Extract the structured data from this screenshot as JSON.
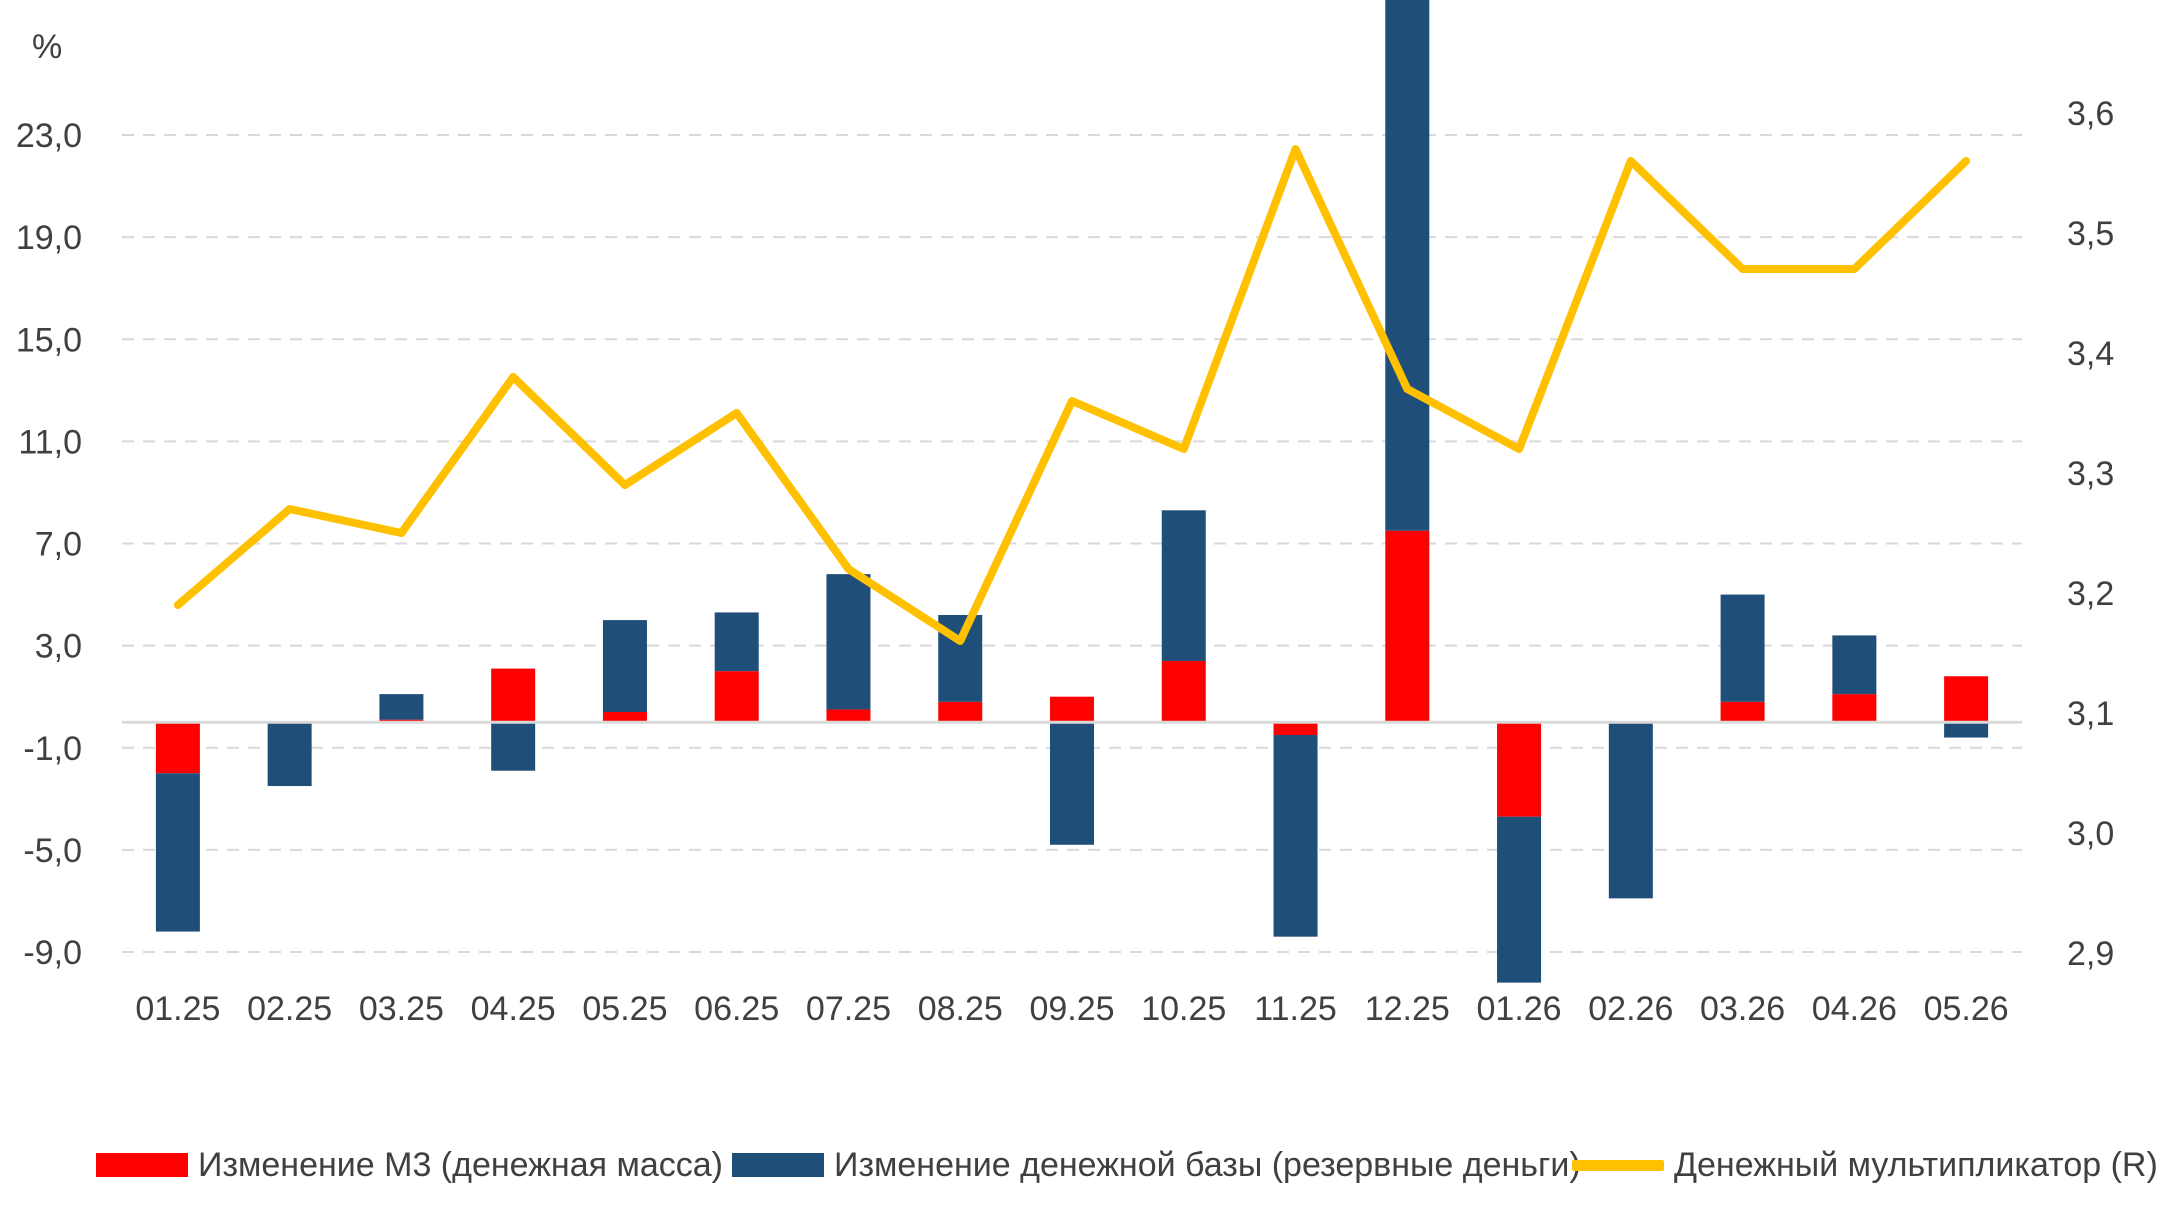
{
  "chart_data": {
    "type": "bar",
    "y_unit": "%",
    "y_left_ticks": [
      "23,0",
      "19,0",
      "15,0",
      "11,0",
      "7,0",
      "3,0",
      "-1,0",
      "-5,0",
      "-9,0"
    ],
    "y_left_tick_values": [
      23,
      19,
      15,
      11,
      7,
      3,
      -1,
      -5,
      -9
    ],
    "y_right_ticks": [
      "3,6",
      "3,5",
      "3,4",
      "3,3",
      "3,2",
      "3,1",
      "3,0",
      "2,9"
    ],
    "y_right_tick_values": [
      3.6,
      3.5,
      3.4,
      3.3,
      3.2,
      3.1,
      3.0,
      2.9
    ],
    "ylim_left": [
      -9,
      23
    ],
    "ylim_right": [
      2.9,
      3.6
    ],
    "grid": true,
    "legend_position": "bottom",
    "categories": [
      "01.25",
      "02.25",
      "03.25",
      "04.25",
      "05.25",
      "06.25",
      "07.25",
      "08.25",
      "09.25",
      "10.25",
      "11.25",
      "12.25",
      "01.26",
      "02.26",
      "03.26",
      "04.26",
      "05.26"
    ],
    "series": [
      {
        "name": "Изменение М3 (денежная масса)",
        "kind": "bar",
        "axis": "left",
        "color": "#FF0000",
        "values": [
          -2.0,
          0.0,
          0.1,
          2.1,
          0.4,
          2.0,
          0.5,
          0.8,
          1.0,
          2.4,
          -0.5,
          7.5,
          -3.7,
          0.0,
          0.8,
          1.1,
          1.8
        ]
      },
      {
        "name": "Изменение денежной базы (резервные деньги)",
        "kind": "bar",
        "axis": "left",
        "color": "#1F4E79",
        "values": [
          -6.2,
          -2.5,
          1.0,
          -1.9,
          3.6,
          2.3,
          5.3,
          3.4,
          -4.8,
          5.9,
          -7.9,
          21.5,
          -6.5,
          -6.9,
          4.2,
          2.3,
          -0.6
        ]
      },
      {
        "name": "Денежный мультипликатор (R)",
        "kind": "line",
        "axis": "right",
        "color": "#FFC000",
        "values": [
          3.19,
          3.27,
          3.25,
          3.38,
          3.29,
          3.35,
          3.22,
          3.16,
          3.36,
          3.32,
          3.57,
          3.37,
          3.32,
          3.56,
          3.47,
          3.47,
          3.56
        ]
      }
    ]
  }
}
